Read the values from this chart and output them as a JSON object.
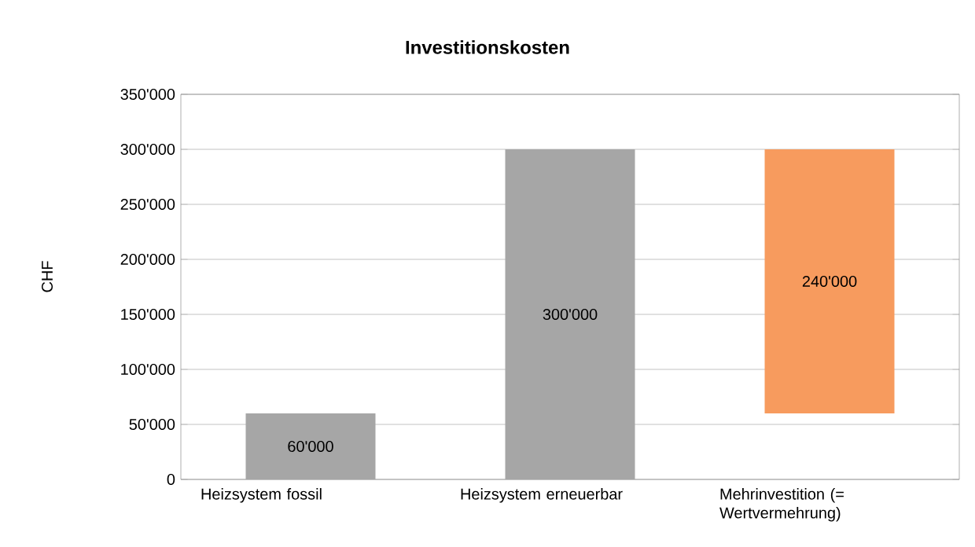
{
  "chart_data": {
    "type": "bar",
    "title": "Investitionskosten",
    "ylabel": "CHF",
    "categories": [
      "Heizsystem fossil",
      "Heizsystem erneuerbar",
      "Mehrinvestition (= Wertvermehrung)"
    ],
    "values": [
      60000,
      300000,
      240000
    ],
    "base": [
      0,
      0,
      60000
    ],
    "colors": [
      "#a6a6a6",
      "#a6a6a6",
      "#f79b5e"
    ],
    "value_labels": [
      "60'000",
      "300'000",
      "240'000"
    ],
    "ylim": [
      0,
      350000
    ],
    "yticks": [
      {
        "value": 0,
        "label": "0"
      },
      {
        "value": 50000,
        "label": "50'000"
      },
      {
        "value": 100000,
        "label": "100'000"
      },
      {
        "value": 150000,
        "label": "150'000"
      },
      {
        "value": 200000,
        "label": "200'000"
      },
      {
        "value": 250000,
        "label": "250'000"
      },
      {
        "value": 300000,
        "label": "300'000"
      },
      {
        "value": 350000,
        "label": "350'000"
      }
    ],
    "grid": "y"
  }
}
